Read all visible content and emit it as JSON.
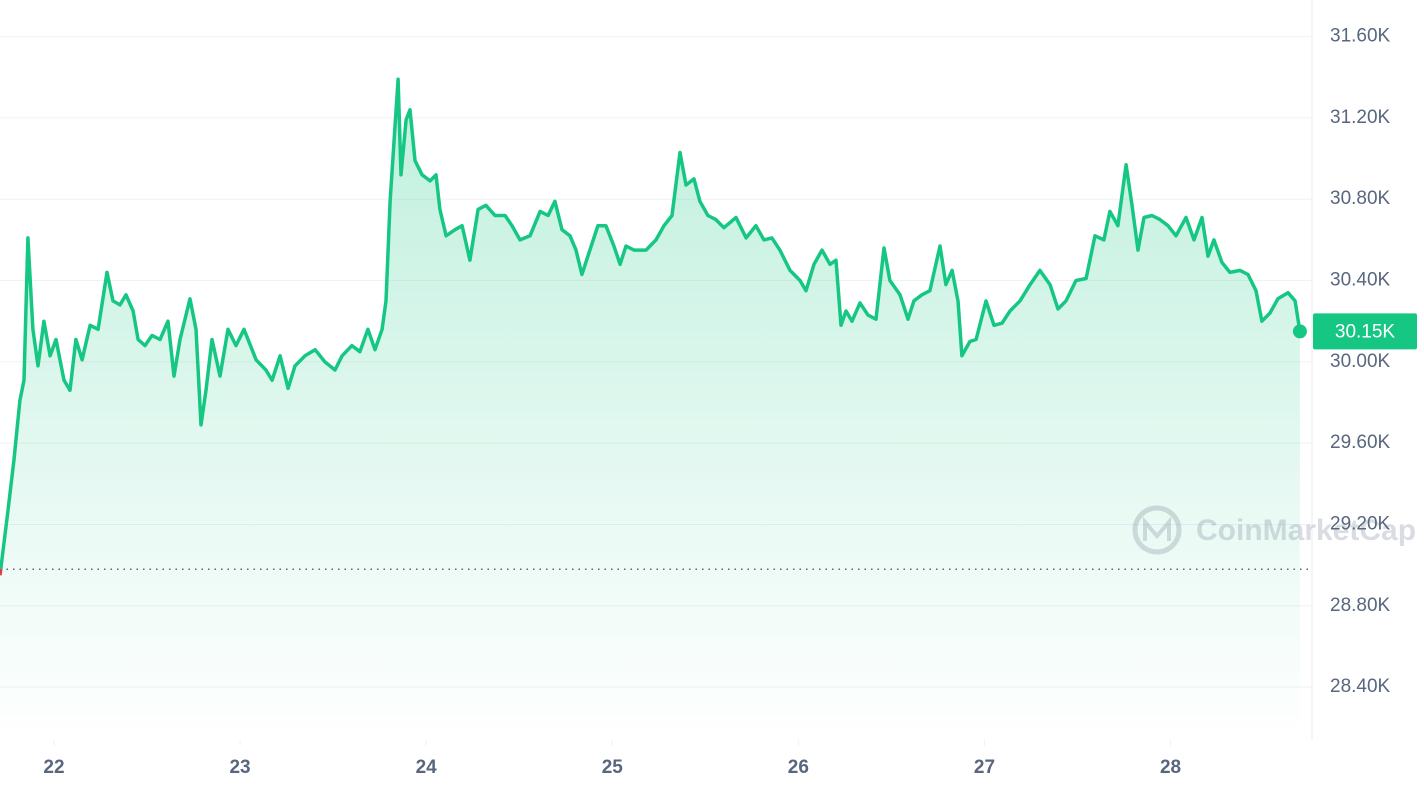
{
  "chart_data": {
    "type": "area",
    "x": [
      21.71,
      21.753,
      21.785,
      21.817,
      21.839,
      21.86,
      21.887,
      21.914,
      21.946,
      21.979,
      22.011,
      22.054,
      22.086,
      22.118,
      22.151,
      22.194,
      22.237,
      22.285,
      22.317,
      22.355,
      22.387,
      22.425,
      22.452,
      22.489,
      22.527,
      22.57,
      22.613,
      22.645,
      22.677,
      22.731,
      22.763,
      22.79,
      22.817,
      22.849,
      22.892,
      22.935,
      22.978,
      23.021,
      23.086,
      23.139,
      23.172,
      23.215,
      23.258,
      23.295,
      23.349,
      23.403,
      23.456,
      23.51,
      23.548,
      23.601,
      23.644,
      23.687,
      23.725,
      23.763,
      23.784,
      23.806,
      23.849,
      23.865,
      23.892,
      23.913,
      23.94,
      23.978,
      24.021,
      24.053,
      24.074,
      24.107,
      24.155,
      24.193,
      24.235,
      24.279,
      24.321,
      24.37,
      24.424,
      24.461,
      24.504,
      24.558,
      24.612,
      24.655,
      24.692,
      24.73,
      24.773,
      24.805,
      24.837,
      24.88,
      24.923,
      24.966,
      25.009,
      25.042,
      25.074,
      25.117,
      25.181,
      25.235,
      25.278,
      25.321,
      25.364,
      25.396,
      25.439,
      25.471,
      25.514,
      25.557,
      25.6,
      25.665,
      25.719,
      25.772,
      25.815,
      25.858,
      25.901,
      25.955,
      26.009,
      26.041,
      26.084,
      26.127,
      26.17,
      26.202,
      26.229,
      26.256,
      26.288,
      26.331,
      26.374,
      26.417,
      26.46,
      26.492,
      26.546,
      26.589,
      26.621,
      26.664,
      26.707,
      26.761,
      26.793,
      26.826,
      26.858,
      26.879,
      26.922,
      26.955,
      27.008,
      27.051,
      27.094,
      27.137,
      27.191,
      27.245,
      27.298,
      27.352,
      27.395,
      27.438,
      27.492,
      27.546,
      27.594,
      27.642,
      27.674,
      27.717,
      27.761,
      27.793,
      27.825,
      27.857,
      27.9,
      27.943,
      27.986,
      28.029,
      28.083,
      28.126,
      28.169,
      28.201,
      28.233,
      28.276,
      28.319,
      28.373,
      28.416,
      28.459,
      28.491,
      28.534,
      28.577,
      28.631,
      28.669,
      28.695
    ],
    "values": [
      28950,
      29270,
      29520,
      29810,
      29910,
      30610,
      30160,
      29980,
      30200,
      30030,
      30110,
      29910,
      29860,
      30110,
      30010,
      30180,
      30160,
      30440,
      30300,
      30280,
      30330,
      30250,
      30110,
      30080,
      30130,
      30110,
      30200,
      29930,
      30110,
      30310,
      30160,
      29690,
      29860,
      30110,
      29930,
      30160,
      30080,
      30160,
      30010,
      29960,
      29910,
      30030,
      29870,
      29980,
      30030,
      30060,
      30000,
      29960,
      30030,
      30080,
      30050,
      30160,
      30060,
      30160,
      30300,
      30790,
      31390,
      30920,
      31190,
      31240,
      30990,
      30920,
      30890,
      30920,
      30750,
      30620,
      30650,
      30670,
      30500,
      30750,
      30770,
      30720,
      30720,
      30670,
      30600,
      30620,
      30740,
      30720,
      30790,
      30650,
      30620,
      30550,
      30430,
      30550,
      30670,
      30670,
      30570,
      30480,
      30570,
      30550,
      30550,
      30600,
      30670,
      30720,
      31030,
      30870,
      30900,
      30790,
      30720,
      30700,
      30660,
      30710,
      30610,
      30670,
      30600,
      30610,
      30550,
      30450,
      30400,
      30350,
      30480,
      30550,
      30480,
      30500,
      30180,
      30250,
      30200,
      30290,
      30230,
      30210,
      30560,
      30400,
      30330,
      30210,
      30300,
      30330,
      30350,
      30570,
      30380,
      30450,
      30300,
      30030,
      30100,
      30110,
      30300,
      30180,
      30190,
      30250,
      30300,
      30380,
      30450,
      30380,
      30260,
      30300,
      30400,
      30410,
      30620,
      30600,
      30740,
      30670,
      30970,
      30770,
      30550,
      30710,
      30720,
      30700,
      30670,
      30620,
      30710,
      30600,
      30710,
      30520,
      30600,
      30490,
      30440,
      30450,
      30430,
      30350,
      30200,
      30240,
      30310,
      30340,
      30300,
      30150
    ],
    "color": "#16c784",
    "below_color": "#ea3943",
    "baseline": 28980,
    "current_price": {
      "value": 30150,
      "label": "30.15K"
    },
    "xlim": [
      21.71,
      28.76
    ],
    "ylim": [
      28140,
      31780
    ],
    "xticks": [
      22,
      23,
      24,
      25,
      26,
      27,
      28
    ],
    "yticks": [
      {
        "value": 28400,
        "label": "28.40K"
      },
      {
        "value": 28800,
        "label": "28.80K"
      },
      {
        "value": 29200,
        "label": "29.20K"
      },
      {
        "value": 29600,
        "label": "29.60K"
      },
      {
        "value": 30000,
        "label": "30.00K"
      },
      {
        "value": 30400,
        "label": "30.40K"
      },
      {
        "value": 30800,
        "label": "30.80K"
      },
      {
        "value": 31200,
        "label": "31.20K"
      },
      {
        "value": 31600,
        "label": "31.60K"
      }
    ],
    "grid": true,
    "watermark": "CoinMarketCap"
  }
}
